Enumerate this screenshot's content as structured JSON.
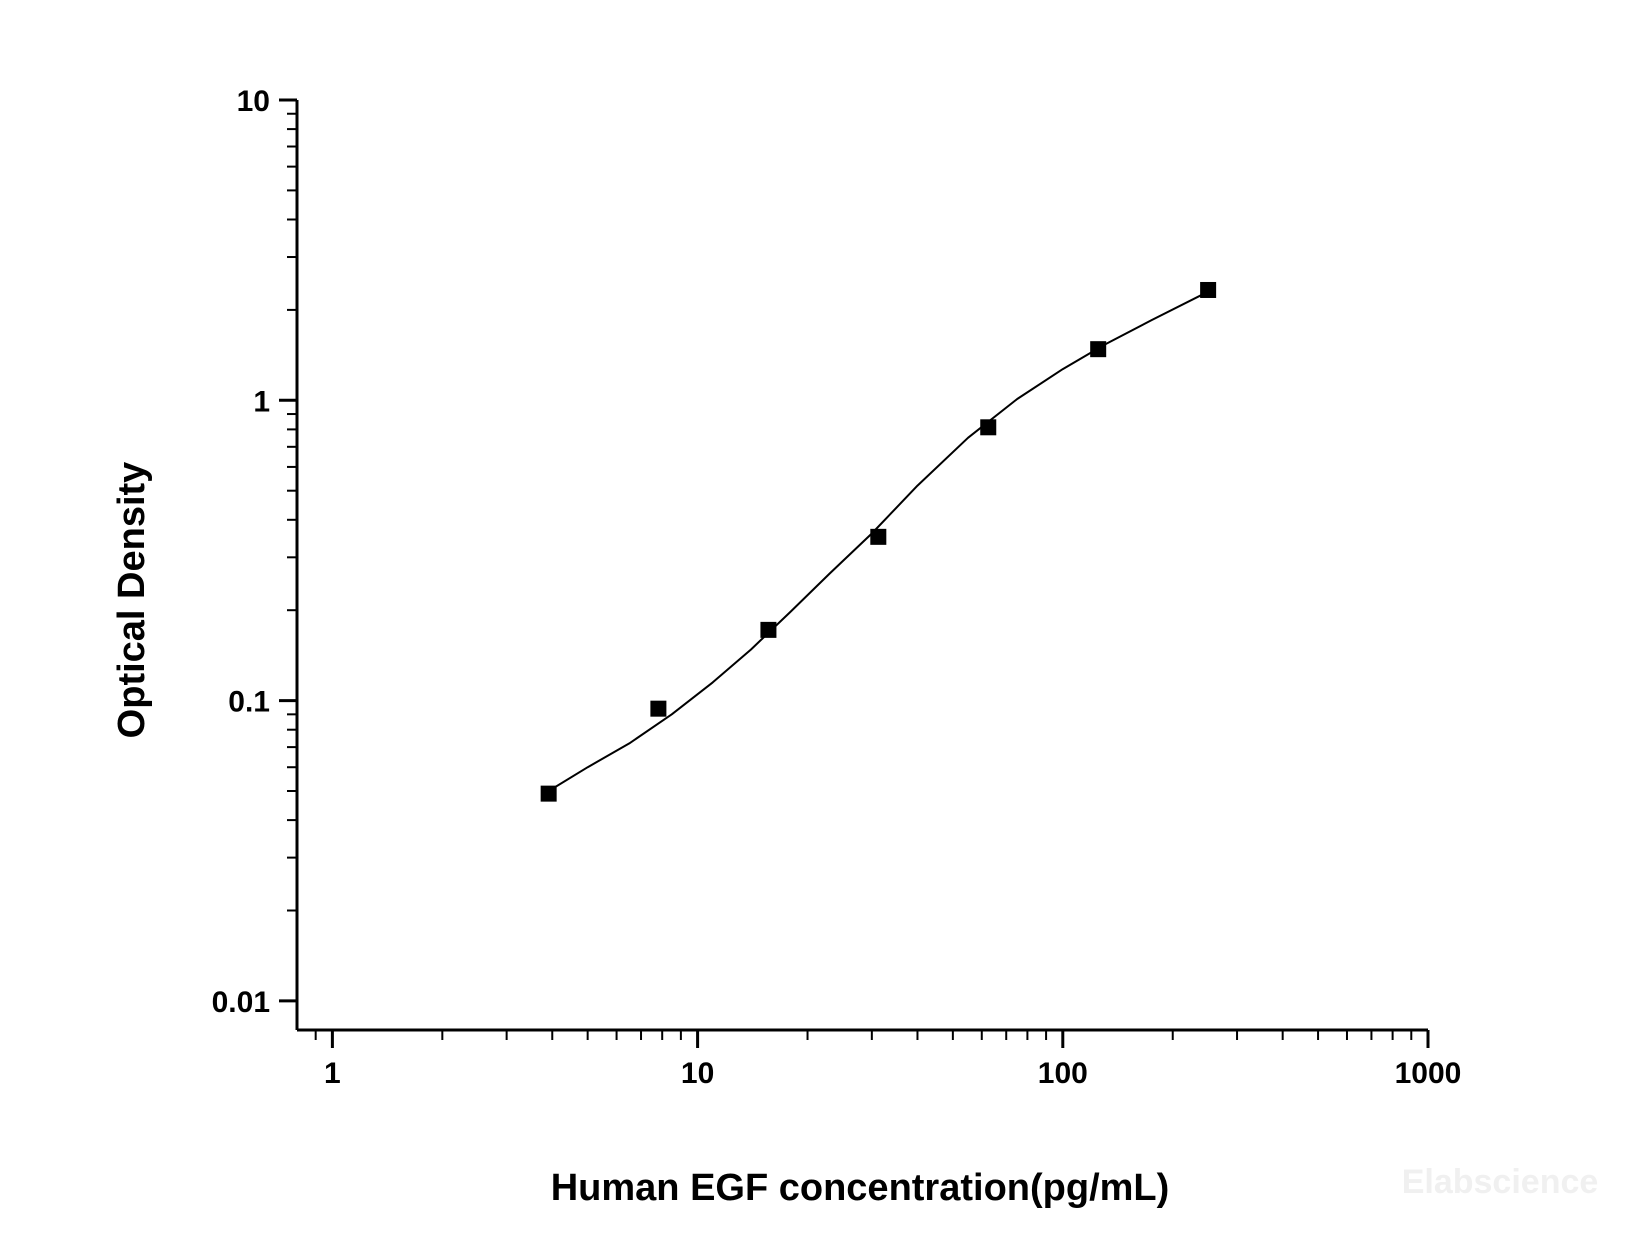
{
  "chart_data": {
    "type": "scatter",
    "title": "",
    "xlabel": "Human EGF concentration(pg/mL)",
    "ylabel": "Optical Density",
    "x_scale": "log",
    "y_scale": "log",
    "xlim": [
      0.8,
      1000
    ],
    "ylim": [
      0.008,
      10
    ],
    "x_ticks": [
      {
        "value": 1,
        "label": "1"
      },
      {
        "value": 10,
        "label": "10"
      },
      {
        "value": 100,
        "label": "100"
      },
      {
        "value": 1000,
        "label": "1000"
      }
    ],
    "y_ticks": [
      {
        "value": 0.01,
        "label": "0.01"
      },
      {
        "value": 0.1,
        "label": "0.1"
      },
      {
        "value": 1,
        "label": "1"
      },
      {
        "value": 10,
        "label": "10"
      }
    ],
    "grid": false,
    "legend": "none",
    "marker": "square",
    "colors": {
      "points": "#000000",
      "curve": "#000000",
      "axes": "#000000"
    },
    "series": [
      {
        "x": [
          3.91,
          7.81,
          15.63,
          31.25,
          62.5,
          125,
          250
        ],
        "y": [
          0.049,
          0.094,
          0.172,
          0.351,
          0.813,
          1.48,
          2.33
        ]
      }
    ],
    "fit_curve": {
      "x": [
        3.91,
        5,
        6.5,
        8.5,
        11,
        14,
        18,
        23,
        30,
        40,
        55,
        75,
        100,
        130,
        175,
        250
      ],
      "y": [
        0.05,
        0.06,
        0.072,
        0.09,
        0.115,
        0.148,
        0.198,
        0.265,
        0.36,
        0.52,
        0.75,
        1.01,
        1.27,
        1.53,
        1.85,
        2.3
      ]
    }
  },
  "watermark": "Elabscience"
}
